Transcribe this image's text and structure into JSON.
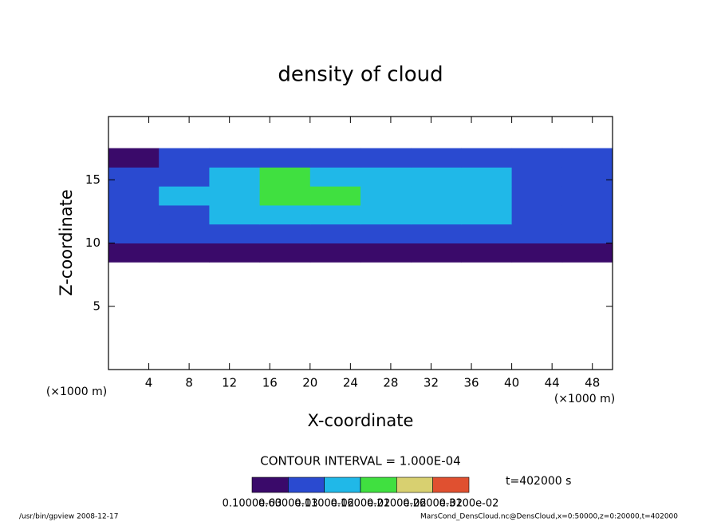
{
  "chart_data": {
    "type": "contour",
    "title": "density of cloud",
    "x_label": "X-coordinate",
    "y_label": "Z-coordinate",
    "x_unit_label": "(×1000 m)",
    "xlim": [
      0,
      50
    ],
    "ylim": [
      0,
      20
    ],
    "xticks": [
      4,
      8,
      12,
      16,
      20,
      24,
      28,
      32,
      36,
      40,
      44,
      48
    ],
    "yticks": [
      5,
      10,
      15
    ],
    "x_edges": [
      0,
      5,
      10,
      15,
      20,
      25,
      30,
      35,
      40,
      45,
      50
    ],
    "z_edges": [
      8.5,
      10,
      11.5,
      13,
      14.5,
      16,
      17.5
    ],
    "values": [
      [
        0.0003,
        0.0003,
        0.0004,
        0.0004,
        0.0004,
        0.0004,
        0.0003,
        0.0004,
        0.0003,
        0.0003
      ],
      [
        0.0007,
        0.0008,
        0.0009,
        0.0009,
        0.0009,
        0.0009,
        0.0008,
        0.0008,
        0.0007,
        0.0007
      ],
      [
        0.0008,
        0.0009,
        0.0011,
        0.0012,
        0.0012,
        0.0012,
        0.0012,
        0.0011,
        0.0009,
        0.0008
      ],
      [
        0.0009,
        0.0011,
        0.0015,
        0.0016,
        0.0016,
        0.0015,
        0.0014,
        0.0013,
        0.001,
        0.0009
      ],
      [
        0.0008,
        0.001,
        0.0014,
        0.0016,
        0.0015,
        0.0014,
        0.0012,
        0.0011,
        0.0009,
        0.0009
      ],
      [
        0.0005,
        0.0006,
        0.0008,
        0.0009,
        0.0009,
        0.0008,
        0.0007,
        0.0007,
        0.0006,
        0.0006
      ]
    ],
    "colorbar_levels": [
      {
        "value": 0.0001,
        "label": "0.1000e-03"
      },
      {
        "value": 0.0006,
        "label": "0.6000e-03"
      },
      {
        "value": 0.0011,
        "label": "0.1100e-02"
      },
      {
        "value": 0.0016,
        "label": "0.1600e-02"
      },
      {
        "value": 0.0021,
        "label": "0.2100e-02"
      },
      {
        "value": 0.0026,
        "label": "0.2600e-02"
      },
      {
        "value": 0.0031,
        "label": "0.3100e-02"
      }
    ],
    "colors": [
      "#3a0a6a",
      "#2a4ad0",
      "#20b8e8",
      "#40e040",
      "#d8d070",
      "#e05030"
    ],
    "contour_interval": "CONTOUR INTERVAL = 1.000E-04",
    "time_label": "t=402000 s",
    "footer_left": "/usr/bin/gpview   2008-12-17",
    "footer_right": "MarsCond_DensCloud.nc@DensCloud,x=0:50000,z=0:20000,t=402000"
  }
}
